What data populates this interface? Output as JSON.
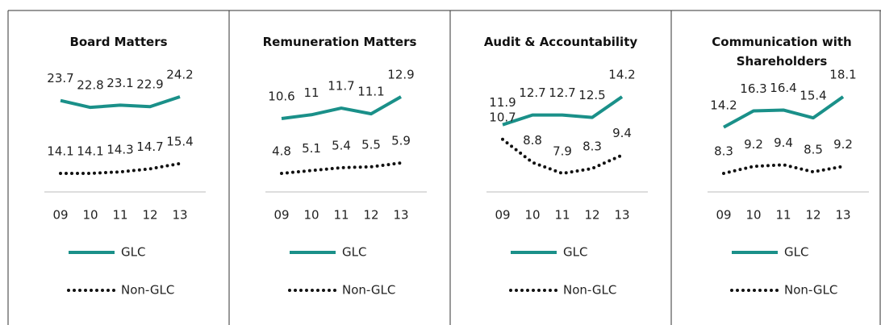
{
  "chart_data": [
    {
      "type": "line",
      "title": "Board Matters",
      "categories": [
        "09",
        "10",
        "11",
        "12",
        "13"
      ],
      "series": [
        {
          "name": "GLC",
          "color": "#1a9089",
          "dash": "solid",
          "values": [
            23.7,
            22.8,
            23.1,
            22.9,
            24.2
          ]
        },
        {
          "name": "Non-GLC",
          "color": "#111111",
          "dash": "dotted",
          "values": [
            14.1,
            14.1,
            14.3,
            14.7,
            15.4
          ]
        }
      ]
    },
    {
      "type": "line",
      "title": "Remuneration Matters",
      "categories": [
        "09",
        "10",
        "11",
        "12",
        "13"
      ],
      "series": [
        {
          "name": "GLC",
          "color": "#1a9089",
          "dash": "solid",
          "values": [
            10.6,
            11.0,
            11.7,
            11.1,
            12.9
          ]
        },
        {
          "name": "Non-GLC",
          "color": "#111111",
          "dash": "dotted",
          "values": [
            4.8,
            5.1,
            5.4,
            5.5,
            5.9
          ]
        }
      ]
    },
    {
      "type": "line",
      "title": "Audit & Accountability",
      "categories": [
        "09",
        "10",
        "11",
        "12",
        "13"
      ],
      "series": [
        {
          "name": "GLC",
          "color": "#1a9089",
          "dash": "solid",
          "values": [
            11.9,
            12.7,
            12.7,
            12.5,
            14.2
          ]
        },
        {
          "name": "Non-GLC",
          "color": "#111111",
          "dash": "dotted",
          "values": [
            10.7,
            8.8,
            7.9,
            8.3,
            9.4
          ]
        }
      ]
    },
    {
      "type": "line",
      "title": "Communication with Shareholders",
      "categories": [
        "09",
        "10",
        "11",
        "12",
        "13"
      ],
      "series": [
        {
          "name": "GLC",
          "color": "#1a9089",
          "dash": "solid",
          "values": [
            14.2,
            16.3,
            16.4,
            15.4,
            18.1
          ]
        },
        {
          "name": "Non-GLC",
          "color": "#111111",
          "dash": "dotted",
          "values": [
            8.3,
            9.2,
            9.4,
            8.5,
            9.2
          ]
        }
      ]
    }
  ]
}
